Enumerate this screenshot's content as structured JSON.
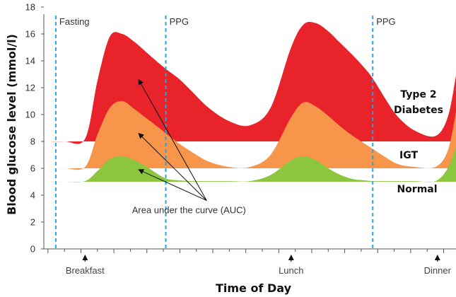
{
  "chart_data": {
    "type": "area",
    "xlabel": "Time of Day",
    "ylabel": "Blood glucose level (mmol/l)",
    "ylim": [
      0,
      18
    ],
    "yticks": [
      0,
      2,
      4,
      6,
      8,
      10,
      12,
      14,
      16,
      18
    ],
    "xlim": [
      0,
      100
    ],
    "x": [
      0,
      5,
      10,
      13,
      16,
      19,
      22,
      25,
      28,
      30,
      33,
      36,
      40,
      45,
      50,
      55,
      60,
      63,
      66,
      69,
      72,
      75,
      78,
      80,
      83,
      86,
      90,
      95,
      98,
      100
    ],
    "series": [
      {
        "name": "Type 2 Diabetes",
        "color": "#e8232a",
        "label_lines": [
          "Type 2",
          "Diabetes"
        ],
        "baseline": 8,
        "values": [
          8,
          8,
          8.2,
          12.5,
          15.8,
          16,
          15.4,
          14.6,
          13.8,
          13.3,
          12.6,
          11.7,
          10.5,
          9.5,
          9.2,
          10.5,
          15,
          16.7,
          16.8,
          16.2,
          15.3,
          14.4,
          13.4,
          12.6,
          11.1,
          9.8,
          8.8,
          8.4,
          9.8,
          12.9
        ]
      },
      {
        "name": "IGT",
        "color": "#f7964a",
        "label_lines": [
          "IGT"
        ],
        "baseline": 6,
        "values": [
          6,
          6,
          6.1,
          8.5,
          10.5,
          11,
          10.4,
          9.7,
          9,
          8.5,
          7.8,
          7.2,
          6.5,
          6.1,
          6.1,
          7,
          9.8,
          10.9,
          10.6,
          9.9,
          9.1,
          8.4,
          7.8,
          7.4,
          6.8,
          6.3,
          6.1,
          6.1,
          7.3,
          10.2
        ]
      },
      {
        "name": "Normal",
        "color": "#8cc63f",
        "label_lines": [
          "Normal"
        ],
        "baseline": 5,
        "values": [
          5,
          5,
          5.05,
          5.8,
          6.7,
          6.9,
          6.6,
          6.1,
          5.5,
          5.2,
          5.1,
          5.05,
          5.05,
          5.05,
          5.05,
          5.5,
          6.6,
          6.9,
          6.6,
          6,
          5.5,
          5.2,
          5.1,
          5.05,
          5.05,
          5.05,
          5.05,
          5.05,
          6,
          7.6
        ]
      }
    ],
    "vlines": [
      {
        "x": 2.9,
        "label": "Fasting"
      },
      {
        "x": 29.6,
        "label": "PPG"
      },
      {
        "x": 79.8,
        "label": "PPG"
      }
    ],
    "meals": [
      {
        "x": 10,
        "label": "Breakfast"
      },
      {
        "x": 60,
        "label": "Lunch"
      },
      {
        "x": 95.5,
        "label": "Dinner"
      }
    ],
    "annotation": {
      "text": "Area under the curve (AUC)",
      "arrow_targets": [
        {
          "x": 23,
          "y": 12.6
        },
        {
          "x": 23,
          "y": 8.6
        },
        {
          "x": 23,
          "y": 5.9
        }
      ],
      "arrow_origin": {
        "x": 39.5,
        "y": 3.6
      }
    },
    "grid": false,
    "legend": "right, inline labels"
  }
}
